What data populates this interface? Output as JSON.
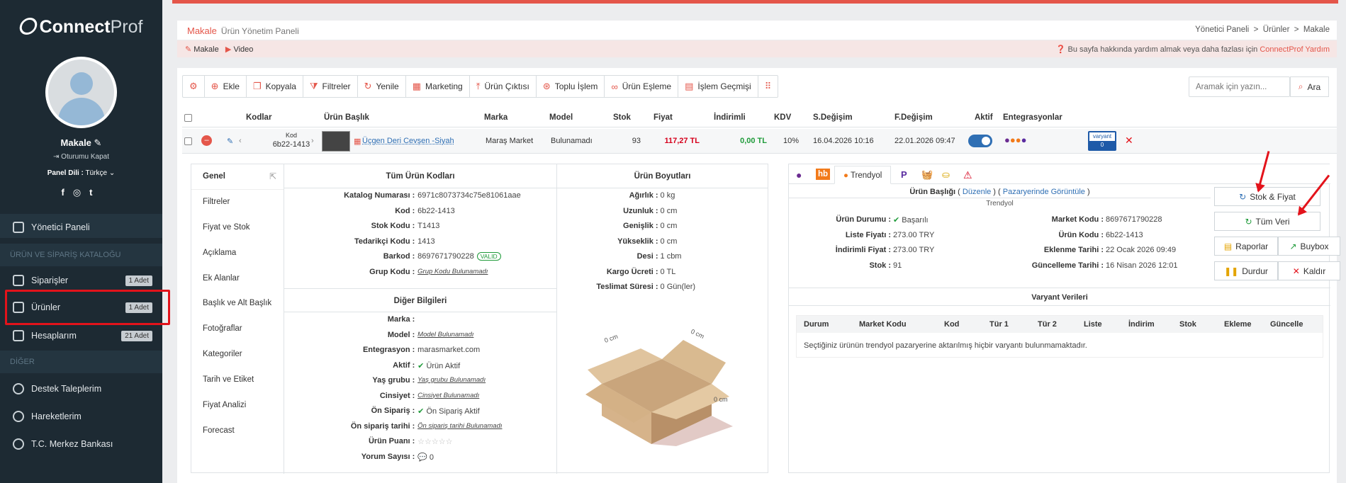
{
  "brand": {
    "name_bold": "Connect",
    "name_light": "Prof"
  },
  "user": {
    "name": "Makale",
    "logout": "Oturumu Kapat",
    "lang_label": "Panel Dili :",
    "lang_value": "Türkçe"
  },
  "nav": {
    "dashboard": "Yönetici Paneli",
    "section1": "ÜRÜN VE SİPARİŞ KATALOĞU",
    "orders": "Siparişler",
    "orders_badge": "1 Adet",
    "products": "Ürünler",
    "products_badge": "1 Adet",
    "accounts": "Hesaplarım",
    "accounts_badge": "21 Adet",
    "section2": "DİĞER",
    "support": "Destek Taleplerim",
    "activity": "Hareketlerim",
    "bank": "T.C. Merkez Bankası"
  },
  "header": {
    "title": "Makale",
    "subtitle": "Ürün Yönetim Paneli",
    "bc1": "Yönetici Paneli",
    "bc2": "Ürünler",
    "bc3": "Makale"
  },
  "subbar": {
    "link1": "Makale",
    "link2": "Video",
    "help_text": "Bu sayfa hakkında yardım almak veya daha fazlası için",
    "help_link": "ConnectProf Yardım"
  },
  "toolbar": {
    "add": "Ekle",
    "copy": "Kopyala",
    "filters": "Filtreler",
    "refresh": "Yenile",
    "marketing": "Marketing",
    "output": "Ürün Çıktısı",
    "bulk": "Toplu İşlem",
    "match": "Ürün Eşleme",
    "history": "İşlem Geçmişi"
  },
  "search": {
    "placeholder": "Aramak için yazın...",
    "button": "Ara"
  },
  "columns": {
    "codes": "Kodlar",
    "title": "Ürün Başlık",
    "brand": "Marka",
    "model": "Model",
    "stock": "Stok",
    "price": "Fiyat",
    "discounted": "İndirimli",
    "vat": "KDV",
    "modified": "S.Değişim",
    "pmodified": "F.Değişim",
    "active": "Aktif",
    "integrations": "Entegrasyonlar"
  },
  "row": {
    "code_label": "Kod",
    "code": "6b22-1413",
    "title": "Üçgen Deri Cevşen -Siyah",
    "brand": "Maraş Market",
    "model": "Bulunamadı",
    "stock": "93",
    "price": "117,27 TL",
    "discounted": "0,00 TL",
    "vat": "10%",
    "modified": "16.04.2026 10:16",
    "pmodified": "22.01.2026 09:47",
    "variant_label": "varyant",
    "variant_count": "0"
  },
  "vtabs": [
    "Genel",
    "Filtreler",
    "Fiyat ve Stok",
    "Açıklama",
    "Ek Alanlar",
    "Başlık ve Alt Başlık",
    "Fotoğraflar",
    "Kategoriler",
    "Tarih ve Etiket",
    "Fiyat Analizi",
    "Forecast"
  ],
  "codes_panel": {
    "title": "Tüm Ürün Kodları",
    "items": [
      {
        "k": "Katalog Numarası :",
        "v": "6971c8073734c75e81061aae"
      },
      {
        "k": "Kod :",
        "v": "6b22-1413"
      },
      {
        "k": "Stok Kodu :",
        "v": "T1413"
      },
      {
        "k": "Tedarikçi Kodu :",
        "v": "1413"
      },
      {
        "k": "Barkod :",
        "v": "8697671790228"
      },
      {
        "k": "Grup Kodu :",
        "v": "Grup Kodu Bulunamadı"
      }
    ],
    "valid": "VALID"
  },
  "other_panel": {
    "title": "Diğer Bilgileri",
    "items": [
      {
        "k": "Marka :",
        "v": ""
      },
      {
        "k": "Model :",
        "v": "Model Bulunamadı"
      },
      {
        "k": "Entegrasyon :",
        "v": "marasmarket.com"
      },
      {
        "k": "Aktif :",
        "v": "Ürün Aktif"
      },
      {
        "k": "Yaş grubu :",
        "v": "Yaş grubu Bulunamadı"
      },
      {
        "k": "Cinsiyet :",
        "v": "Cinsiyet Bulunamadı"
      },
      {
        "k": "Ön Sipariş :",
        "v": "Ön Sipariş Aktif"
      },
      {
        "k": "Ön sipariş tarihi :",
        "v": "Ön sipariş tarihi Bulunamadı"
      },
      {
        "k": "Ürün Puanı :",
        "v": "☆☆☆☆☆"
      },
      {
        "k": "Yorum Sayısı :",
        "v": "0"
      }
    ]
  },
  "dims_panel": {
    "title": "Ürün Boyutları",
    "items": [
      {
        "k": "Ağırlık :",
        "v": "0 kg"
      },
      {
        "k": "Uzunluk :",
        "v": "0 cm"
      },
      {
        "k": "Genişlik :",
        "v": "0 cm"
      },
      {
        "k": "Yükseklik :",
        "v": "0 cm"
      },
      {
        "k": "Desi :",
        "v": "1 cbm"
      },
      {
        "k": "Kargo Ücreti :",
        "v": "0 TL"
      },
      {
        "k": "Teslimat Süresi :",
        "v": "0 Gün(ler)"
      }
    ],
    "box_w": "0 cm",
    "box_l": "0 cm",
    "box_h": "0 cm"
  },
  "market": {
    "tab_hb": "hb",
    "tab_trendyol": "Trendyol",
    "title_label": "Ürün Başlığı",
    "edit": "Düzenle",
    "view": "Pazaryerinde Görüntüle",
    "platform": "Trendyol",
    "left": [
      {
        "k": "Ürün Durumu :",
        "v": "Başarılı"
      },
      {
        "k": "Liste Fiyatı :",
        "v": "273.00 TRY"
      },
      {
        "k": "İndirimli Fiyat :",
        "v": "273.00 TRY"
      },
      {
        "k": "Stok :",
        "v": "91"
      }
    ],
    "right": [
      {
        "k": "Market Kodu :",
        "v": "8697671790228"
      },
      {
        "k": "Ürün Kodu :",
        "v": "6b22-1413"
      },
      {
        "k": "Eklenme Tarihi :",
        "v": "22 Ocak 2026 09:49"
      },
      {
        "k": "Güncelleme Tarihi :",
        "v": "16 Nisan 2026 12:01"
      }
    ],
    "btn_stock": "Stok & Fiyat",
    "btn_all": "Tüm Veri",
    "btn_reports": "Raporlar",
    "btn_buybox": "Buybox",
    "btn_stop": "Durdur",
    "btn_remove": "Kaldır",
    "variants_title": "Varyant Verileri",
    "vcols": [
      "Durum",
      "Market Kodu",
      "Kod",
      "Tür 1",
      "Tür 2",
      "Liste",
      "İndirim",
      "Stok",
      "Ekleme",
      "Güncelle"
    ],
    "empty": "Seçtiğiniz ürünün trendyol pazaryerine aktarılmış hiçbir varyantı bulunmamaktadır."
  }
}
